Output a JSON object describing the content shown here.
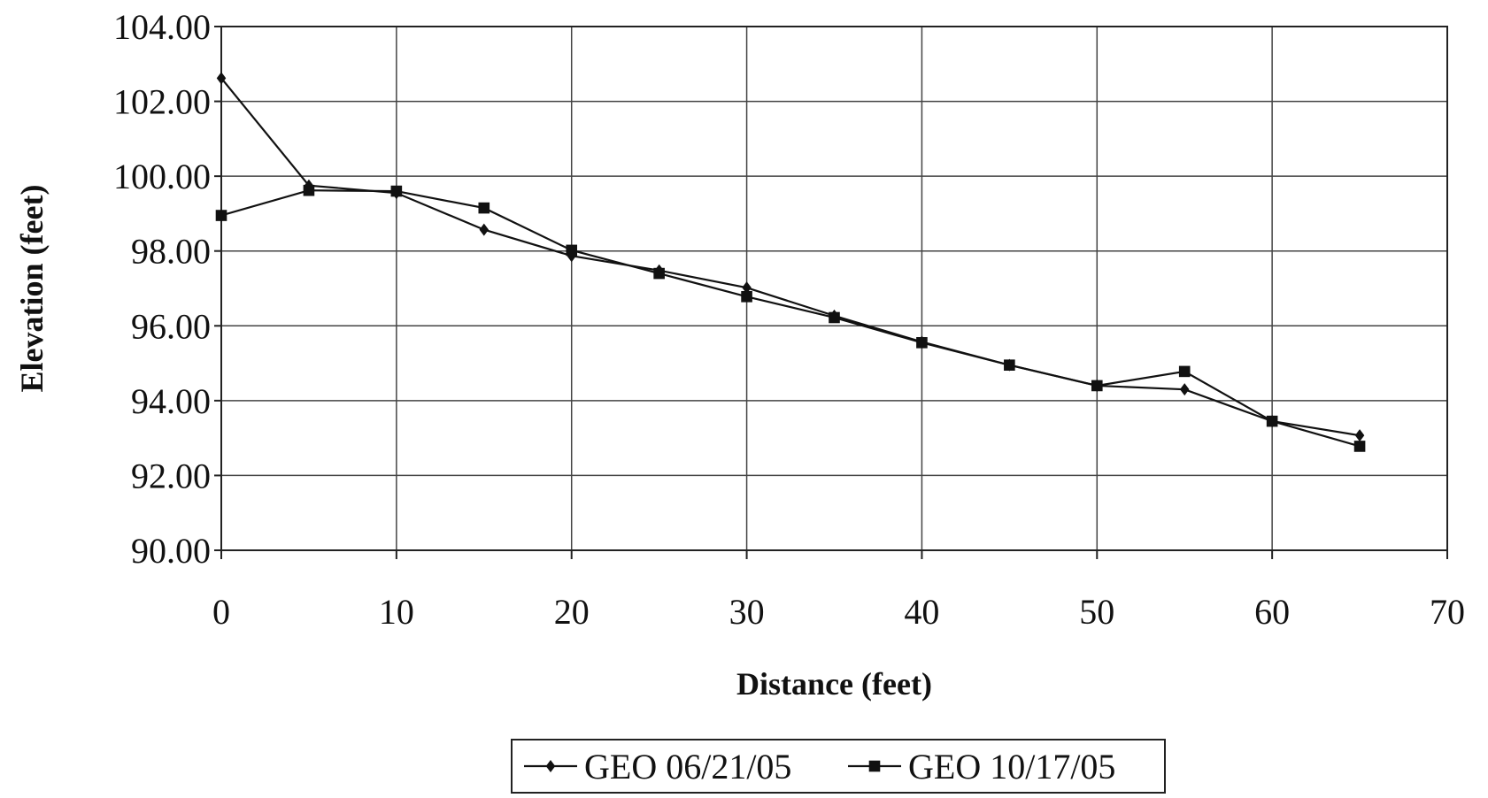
{
  "chart_data": {
    "type": "line",
    "title": "",
    "xlabel": "Distance (feet)",
    "ylabel": "Elevation (feet)",
    "xlim": [
      0,
      70
    ],
    "ylim": [
      90,
      104
    ],
    "xticks": [
      "0",
      "10",
      "20",
      "30",
      "40",
      "50",
      "60",
      "70"
    ],
    "yticks": [
      "90.00",
      "92.00",
      "94.00",
      "96.00",
      "98.00",
      "100.00",
      "102.00",
      "104.00"
    ],
    "grid": true,
    "legend_position": "bottom",
    "x": [
      0,
      5,
      10,
      15,
      20,
      25,
      30,
      35,
      40,
      45,
      50,
      55,
      60,
      65
    ],
    "series": [
      {
        "name": "GEO 06/21/05",
        "marker": "diamond",
        "color": "#111111",
        "values": [
          102.62,
          99.75,
          99.55,
          98.57,
          97.87,
          97.48,
          97.02,
          96.27,
          95.57,
          94.95,
          94.4,
          94.3,
          93.45,
          93.07
        ]
      },
      {
        "name": "GEO 10/17/05",
        "marker": "square",
        "color": "#111111",
        "values": [
          98.95,
          99.62,
          99.6,
          99.15,
          98.02,
          97.4,
          96.78,
          96.22,
          95.55,
          94.95,
          94.4,
          94.78,
          93.45,
          92.78
        ]
      }
    ]
  }
}
